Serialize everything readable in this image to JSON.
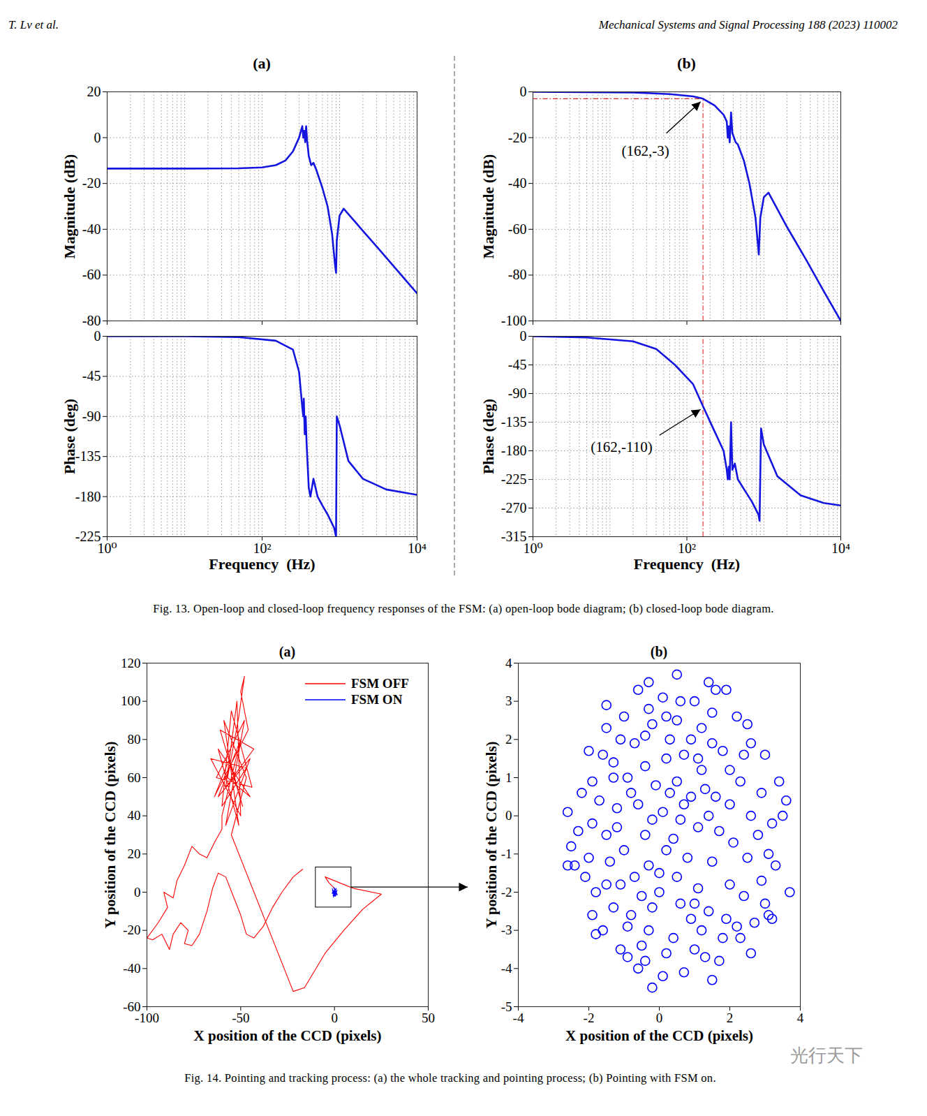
{
  "header": {
    "left": "T. Lv et al.",
    "right": "Mechanical Systems and Signal Processing 188 (2023) 110002"
  },
  "captions": [
    "Fig. 13. Open-loop and closed-loop frequency responses of the FSM: (a) open-loop bode diagram; (b) closed-loop bode diagram.",
    "Fig. 14. Pointing and tracking process: (a) the whole tracking and pointing process; (b) Pointing with FSM on."
  ],
  "watermark": "光行天下",
  "chart_data": [
    {
      "type": "line",
      "title": "(a)",
      "y_label": "Magnitude (dB)",
      "log": "x",
      "grid": true,
      "tick_labels": "y",
      "color": "#1515e0",
      "xlim": [
        1,
        10000
      ],
      "xticks": [
        {
          "value": 1,
          "label": "10⁰"
        },
        {
          "value": 100,
          "label": "10²"
        },
        {
          "value": 10000,
          "label": "10⁴"
        }
      ],
      "ylim": [
        -80,
        20
      ],
      "yticks": [
        -80,
        -60,
        -40,
        -20,
        0,
        20
      ],
      "x": [
        1,
        10,
        50,
        100,
        150,
        200,
        250,
        300,
        330,
        340,
        350,
        360,
        370,
        380,
        400,
        430,
        460,
        500,
        600,
        700,
        800,
        870,
        900,
        920,
        1000,
        1130,
        1500,
        2000,
        3000,
        5000,
        10000
      ],
      "values": [
        -13.5,
        -13.5,
        -13.4,
        -13,
        -12,
        -10,
        -6,
        0,
        5,
        0,
        3,
        -2,
        5,
        -1,
        -8,
        -12,
        -11,
        -14,
        -22,
        -30,
        -42,
        -55,
        -59,
        -45,
        -34,
        -31,
        -35.8,
        -40.7,
        -47.5,
        -56.2,
        -68
      ]
    },
    {
      "type": "line",
      "x_label": "Frequency  (Hz)",
      "y_label": "Phase (deg)",
      "log": "x",
      "grid": true,
      "color": "#1515e0",
      "xlim": [
        1,
        10000
      ],
      "xticks": [
        {
          "value": 1,
          "label": "10⁰"
        },
        {
          "value": 100,
          "label": "10²"
        },
        {
          "value": 10000,
          "label": "10⁴"
        }
      ],
      "ylim": [
        -225,
        0
      ],
      "yticks": [
        -225,
        -180,
        -135,
        -90,
        -45,
        0
      ],
      "x": [
        1,
        10,
        50,
        150,
        250,
        300,
        330,
        340,
        345,
        355,
        365,
        375,
        400,
        420,
        460,
        520,
        600,
        700,
        850,
        900,
        920,
        1000,
        1300,
        2000,
        4000,
        10000
      ],
      "values": [
        0,
        0,
        -1,
        -5,
        -15,
        -40,
        -80,
        -90,
        -70,
        -110,
        -90,
        -120,
        -170,
        -180,
        -160,
        -180,
        -190,
        -200,
        -215,
        -225,
        -90,
        -100,
        -140,
        -160,
        -172,
        -178
      ]
    },
    {
      "type": "line",
      "title": "(b)",
      "y_label": "Magnitude (dB)",
      "log": "x",
      "grid": true,
      "tick_labels": "y",
      "color": "#1515e0",
      "xlim": [
        1,
        10000
      ],
      "xticks": [
        {
          "value": 1,
          "label": "10⁰"
        },
        {
          "value": 100,
          "label": "10²"
        },
        {
          "value": 10000,
          "label": "10⁴"
        }
      ],
      "ylim": [
        -100,
        0
      ],
      "yticks": [
        -100,
        -80,
        -60,
        -40,
        -20,
        0
      ],
      "x": [
        1,
        20,
        60,
        120,
        162,
        230,
        300,
        330,
        340,
        350,
        360,
        375,
        390,
        430,
        460,
        550,
        650,
        780,
        860,
        900,
        1000,
        1150,
        2000,
        3500,
        6000,
        10000
      ],
      "values": [
        0,
        -0.3,
        -1,
        -2,
        -3,
        -6,
        -10,
        -13,
        -20,
        -15,
        -22,
        -9,
        -18,
        -22,
        -23,
        -30,
        -40,
        -55,
        -71,
        -55,
        -46,
        -44,
        -59,
        -73,
        -87,
        -100
      ],
      "annotations": [
        {
          "text": "(162,-3)",
          "x": 162,
          "y": -3
        }
      ]
    },
    {
      "type": "line",
      "x_label": "Frequency  (Hz)",
      "y_label": "Phase (deg)",
      "log": "x",
      "grid": true,
      "color": "#1515e0",
      "xlim": [
        1,
        10000
      ],
      "xticks": [
        {
          "value": 1,
          "label": "10⁰"
        },
        {
          "value": 100,
          "label": "10²"
        },
        {
          "value": 10000,
          "label": "10⁴"
        }
      ],
      "ylim": [
        -315,
        0
      ],
      "yticks": [
        -315,
        -270,
        -225,
        -180,
        -135,
        -90,
        -45,
        0
      ],
      "x": [
        1,
        5,
        20,
        40,
        70,
        120,
        162,
        230,
        300,
        330,
        340,
        350,
        360,
        375,
        390,
        420,
        460,
        550,
        700,
        850,
        880,
        920,
        1000,
        1500,
        3000,
        6000,
        10000
      ],
      "values": [
        0,
        -2,
        -8,
        -20,
        -45,
        -75,
        -110,
        -150,
        -180,
        -210,
        -225,
        -205,
        -225,
        -135,
        -210,
        -200,
        -225,
        -240,
        -260,
        -280,
        -290,
        -145,
        -170,
        -220,
        -250,
        -262,
        -266
      ],
      "annotations": [
        {
          "text": "(162,-110)",
          "x": 162,
          "y": -110
        }
      ]
    },
    {
      "type": "line",
      "title": "(a)",
      "x_label": "X position of the CCD (pixels)",
      "y_label": "Y position of the CCD (pixels)",
      "grid": false,
      "legend": "top-right",
      "xlim": [
        -100,
        50
      ],
      "xticks": [
        -100,
        -50,
        0,
        50
      ],
      "ylim": [
        -60,
        120
      ],
      "yticks": [
        -60,
        -40,
        -20,
        0,
        20,
        40,
        60,
        80,
        100,
        120
      ],
      "inset_box": {
        "x": [
          -10,
          9
        ],
        "y": [
          -8,
          13
        ]
      },
      "series": [
        {
          "name": "FSM OFF",
          "color": "#ff0000",
          "x": [
            -17,
            -22,
            -28,
            -33,
            -38,
            -43,
            -47,
            -50,
            -54,
            -58,
            -62,
            -65,
            -68,
            -72,
            -76,
            -80,
            -78,
            -82,
            -86,
            -88,
            -92,
            -97,
            -100,
            -94,
            -89,
            -91,
            -86,
            -84,
            -80,
            -76,
            -72,
            -68,
            -64,
            -60,
            -60,
            -50,
            -62,
            -45,
            -58,
            -48,
            -63,
            -44,
            -55,
            -60,
            -47,
            -66,
            -50,
            -52,
            -58,
            -43,
            -61,
            -49,
            -56,
            -64,
            -46,
            -50,
            -48,
            -51,
            -57,
            -45,
            -62,
            -51,
            -59,
            -47,
            -55,
            -22,
            -16,
            -5,
            5,
            15,
            25,
            10,
            -5,
            -3,
            0
          ],
          "values": [
            12,
            8,
            0,
            -8,
            -18,
            -24,
            -22,
            -12,
            -2,
            8,
            10,
            2,
            -10,
            -22,
            -28,
            -27,
            -20,
            -16,
            -22,
            -30,
            -22,
            -25,
            -24,
            -16,
            -8,
            0,
            -3,
            6,
            14,
            24,
            20,
            18,
            26,
            33,
            40,
            80,
            50,
            70,
            35,
            90,
            60,
            55,
            95,
            45,
            65,
            70,
            40,
            100,
            55,
            75,
            85,
            45,
            70,
            50,
            85,
            105,
            113,
            92,
            60,
            50,
            75,
            35,
            90,
            60,
            30,
            -52,
            -50,
            -32,
            -20,
            -9,
            -1,
            2,
            8,
            5,
            2
          ]
        },
        {
          "name": "FSM ON",
          "color": "#0000ff",
          "x": [
            0,
            1,
            -1,
            0.5,
            -0.8,
            1.2,
            0.3,
            -1.1,
            0.8,
            -0.4,
            1.5,
            -1.3,
            0.2,
            0.9,
            -0.6,
            1.4,
            0,
            -1.2,
            0.7,
            0.1
          ],
          "values": [
            2,
            -1,
            0,
            1.5,
            -1.8,
            0.4,
            -2.2,
            1,
            -0.6,
            2.5,
            -1.4,
            -0.5,
            0.8,
            2,
            -2.6,
            1.1,
            -1,
            1.8,
            -1.9,
            0.3
          ]
        }
      ]
    },
    {
      "type": "scatter",
      "title": "(b)",
      "x_label": "X position of the CCD (pixels)",
      "y_label": "Y position of the CCD (pixels)",
      "grid": false,
      "marker": "circle",
      "color": "#0000ff",
      "xlim": [
        -4,
        4
      ],
      "xticks": [
        -4,
        -2,
        0,
        2,
        4
      ],
      "ylim": [
        -5,
        4
      ],
      "yticks": [
        -5,
        -4,
        -3,
        -2,
        -1,
        0,
        1,
        2,
        3,
        4
      ],
      "x": [
        0.5,
        -0.2,
        3.7,
        -2.5,
        3.6,
        1.4,
        -1.9,
        2.6,
        3.2,
        -2.4,
        -1.8,
        -1.6,
        -1.1,
        -0.4,
        0.7,
        1.7,
        2.6,
        3.3,
        3.4,
        3.0,
        2.2,
        1.9,
        1.0,
        0.1,
        -0.6,
        -1.0,
        -1.5,
        -2.0,
        -2.6,
        -2.3,
        -1.3,
        -1.2,
        -1.0,
        -1.1,
        -0.8,
        -0.3,
        0.4,
        1.2,
        1.9,
        2.4,
        2.5,
        2.6,
        2.3,
        1.8,
        1.2,
        0.5,
        -0.2,
        -0.7,
        -0.9,
        -0.6,
        -0.4,
        -0.3,
        0.0,
        0.6,
        1.1,
        1.5,
        1.7,
        1.6,
        1.2,
        0.7,
        0.2,
        -0.1,
        0.1,
        0.4,
        0.8,
        1.1,
        0.9,
        0.5,
        0.2,
        0.6,
        -1.5,
        -1.7,
        -1.4,
        -1.3,
        -0.5,
        0.2,
        1.0,
        1.4,
        2.0,
        2.1,
        2.0,
        1.4,
        0.9,
        -0.2,
        -0.7,
        -1.2,
        -0.8,
        -0.4,
        0.3,
        0.9,
        1.5,
        2.0,
        2.8,
        2.9,
        2.2,
        1.3,
        -0.9,
        -1.9,
        -2.1,
        -2.2,
        -1.6,
        -1.1,
        -0.3,
        0.6,
        1.5,
        2.5,
        2.9,
        3.2,
        3.0,
        2.3,
        0.1,
        -0.6,
        1.5,
        3.1,
        3.5,
        1.6,
        -0.3,
        -1.5,
        -2.6,
        -1.8,
        0.3,
        -0.2,
        0.7,
        1.3,
        0.0,
        0.5,
        1.0,
        -0.5,
        -0.9,
        1.8,
        2.7,
        3.1,
        2.4,
        -0.4,
        -1.3,
        -1.9,
        -2.0,
        -1.5,
        0.2,
        1.1
      ],
      "values": [
        3.7,
        -4.5,
        -2.0,
        -0.8,
        0.4,
        3.5,
        0.9,
        1.9,
        -2.7,
        -1.3,
        -2.0,
        -3.0,
        -3.5,
        -3.8,
        -4.1,
        -3.8,
        -3.6,
        -1.3,
        0.9,
        1.6,
        2.6,
        3.3,
        3.0,
        3.1,
        3.3,
        2.6,
        2.3,
        1.7,
        0.1,
        -0.4,
        1.4,
        0.2,
        -0.9,
        -1.8,
        -2.6,
        -3.0,
        -3.2,
        -3.0,
        -2.7,
        -2.1,
        -1.1,
        0.0,
        0.9,
        1.7,
        2.3,
        2.5,
        2.4,
        1.9,
        1.0,
        0.3,
        -0.5,
        -1.3,
        -2.0,
        -2.3,
        -1.9,
        -1.2,
        -0.4,
        0.5,
        1.2,
        1.6,
        1.5,
        0.8,
        0.1,
        -0.6,
        -1.1,
        -0.3,
        0.5,
        0.9,
        -0.9,
        -0.1,
        -0.5,
        0.4,
        -1.2,
        -2.4,
        -3.4,
        -3.6,
        -3.5,
        -2.5,
        -1.8,
        -0.7,
        0.3,
        0.0,
        -2.7,
        -2.4,
        -1.6,
        -0.3,
        0.6,
        1.3,
        2.0,
        2.0,
        1.9,
        1.2,
        -0.5,
        -1.7,
        -2.9,
        -3.7,
        -3.7,
        -2.6,
        -1.6,
        0.6,
        1.6,
        2.0,
        2.8,
        3.0,
        2.7,
        2.4,
        0.6,
        -0.2,
        -2.3,
        -3.2,
        -4.2,
        -4.0,
        -4.3,
        -2.6,
        0.0,
        3.3,
        3.5,
        2.9,
        -1.3,
        -3.1,
        0.6,
        -0.1,
        0.3,
        0.7,
        -1.5,
        -1.6,
        -2.3,
        -2.1,
        -2.9,
        -3.2,
        -2.8,
        -1.0,
        1.6,
        2.1,
        1.0,
        -0.2,
        -1.1,
        -1.8,
        2.6,
        1.5
      ]
    }
  ]
}
